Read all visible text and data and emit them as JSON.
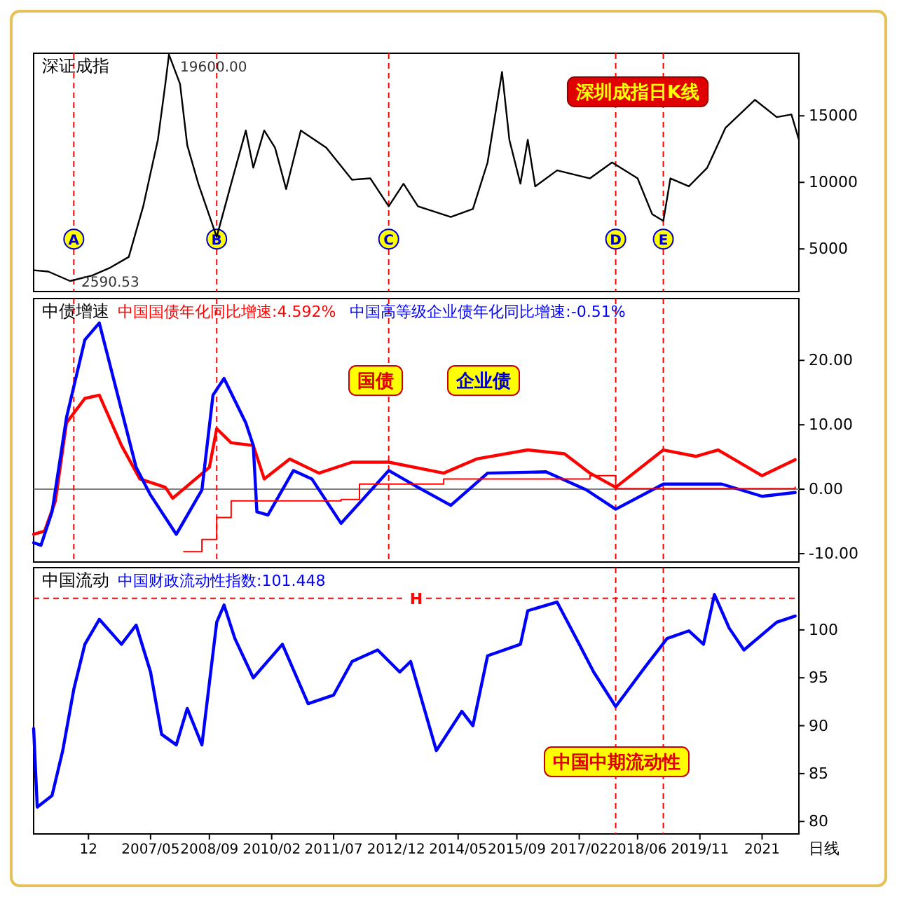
{
  "chart_data": [
    {
      "type": "line",
      "title": "深证成指",
      "xlim": [
        "2004-09",
        "2022-02"
      ],
      "ylim": [
        1800,
        19700
      ],
      "yticks": [
        5000,
        10000,
        15000
      ],
      "tick_labels": "y",
      "series": [
        {
          "color": "#000000",
          "x": [
            "2004-09",
            "2005-01",
            "2005-07",
            "2006-01",
            "2006-06",
            "2006-11",
            "2007-03",
            "2007-07",
            "2007-09",
            "2007-10",
            "2008-01",
            "2008-03",
            "2008-06",
            "2008-11",
            "2009-03",
            "2009-07",
            "2009-09",
            "2009-12",
            "2010-03",
            "2010-06",
            "2010-10",
            "2011-05",
            "2011-12",
            "2012-05",
            "2012-10",
            "2013-02",
            "2013-06",
            "2014-03",
            "2014-09",
            "2015-01",
            "2015-05",
            "2015-07",
            "2015-10",
            "2015-12",
            "2016-02",
            "2016-08",
            "2017-05",
            "2017-11",
            "2018-06",
            "2018-10",
            "2019-01",
            "2019-03",
            "2019-08",
            "2020-01",
            "2020-06",
            "2021-02",
            "2021-08",
            "2021-12",
            "2022-02"
          ],
          "values": [
            3400,
            3300,
            2590.53,
            3000,
            3600,
            4400,
            8200,
            13200,
            17400,
            19600,
            17400,
            12800,
            9900,
            5900,
            9900,
            13900,
            11100,
            13900,
            12600,
            9500,
            13900,
            12600,
            10200,
            10300,
            8200,
            9900,
            8200,
            7400,
            8000,
            11500,
            18300,
            13200,
            9900,
            13200,
            9700,
            10900,
            10300,
            11500,
            10300,
            7600,
            7100,
            10300,
            9700,
            11100,
            14100,
            16200,
            14900,
            15100,
            13200
          ]
        }
      ],
      "ref_lines": [
        {
          "axis": "x",
          "value": "2005-08",
          "label": "A",
          "color": "#ff0000",
          "line_style": "dashed"
        },
        {
          "axis": "x",
          "value": "2008-11",
          "label": "B",
          "color": "#ff0000",
          "line_style": "dashed"
        },
        {
          "axis": "x",
          "value": "2012-10",
          "label": "C",
          "color": "#ff0000",
          "line_style": "dashed"
        },
        {
          "axis": "x",
          "value": "2017-12",
          "label": "D",
          "color": "#ff0000",
          "line_style": "dashed"
        },
        {
          "axis": "x",
          "value": "2019-01",
          "label": "E",
          "color": "#ff0000",
          "line_style": "dashed"
        }
      ],
      "annotations": [
        {
          "text": "19600.00",
          "x": "2007-10",
          "y": 19600
        },
        {
          "text": "2590.53",
          "x": "2005-07",
          "y": 2590.53
        },
        "深圳成指日K线"
      ]
    },
    {
      "type": "line",
      "title": "中债增速",
      "xlim": [
        "2004-09",
        "2022-02"
      ],
      "ylim": [
        -11.3,
        29.6
      ],
      "yticks": [
        {
          "value": -10,
          "label": "-10.00"
        },
        {
          "value": 0,
          "label": "0.00"
        },
        {
          "value": 10,
          "label": "10.00"
        },
        {
          "value": 20,
          "label": "20.00"
        }
      ],
      "tick_labels": "y",
      "legend": "top left",
      "series": [
        {
          "name": "中国国债年化同比增速:4.592%",
          "color": "#ff0000",
          "x": [
            "2004-09",
            "2004-12",
            "2005-03",
            "2005-06",
            "2005-11",
            "2006-03",
            "2006-09",
            "2007-02",
            "2007-09",
            "2007-11",
            "2008-09",
            "2008-11",
            "2009-03",
            "2009-09",
            "2009-12",
            "2010-07",
            "2011-03",
            "2011-12",
            "2012-10",
            "2014-01",
            "2014-10",
            "2015-12",
            "2016-10",
            "2017-05",
            "2017-12",
            "2019-01",
            "2019-10",
            "2020-04",
            "2021-04",
            "2022-01"
          ],
          "values": [
            -7,
            -6.5,
            -1.8,
            10.3,
            14.1,
            14.6,
            6.8,
            1.6,
            0.3,
            -1.4,
            3.4,
            9.4,
            7.2,
            6.8,
            1.6,
            4.7,
            2.5,
            4.2,
            4.2,
            2.5,
            4.7,
            6.1,
            5.5,
            2.5,
            0.3,
            6.1,
            5.1,
            6.1,
            2.1,
            4.592
          ]
        },
        {
          "name": "中国高等级企业债年化同比增速:-0.51%",
          "color": "#0000ff",
          "x": [
            "2004-09",
            "2004-11",
            "2005-02",
            "2005-06",
            "2005-11",
            "2006-03",
            "2006-08",
            "2007-01",
            "2007-05",
            "2007-12",
            "2008-07",
            "2008-10",
            "2009-01",
            "2009-07",
            "2009-09",
            "2009-10",
            "2010-01",
            "2010-08",
            "2011-01",
            "2011-09",
            "2012-10",
            "2013-06",
            "2014-03",
            "2015-01",
            "2016-05",
            "2017-04",
            "2017-12",
            "2019-01",
            "2020-05",
            "2021-04",
            "2022-01"
          ],
          "values": [
            -8.3,
            -8.7,
            -3.5,
            11.1,
            23.2,
            25.8,
            14.6,
            3.4,
            -0.9,
            -7,
            -0.1,
            14.6,
            17.2,
            10.3,
            6.8,
            -3.5,
            -4,
            2.9,
            1.6,
            -5.3,
            2.9,
            0.3,
            -2.5,
            2.5,
            2.7,
            -0.1,
            -3.1,
            0.8,
            0.8,
            -1.1,
            -0.51
          ]
        },
        {
          "type": "step",
          "color": "#ff0000",
          "x": [
            "2008-02",
            "2008-07",
            "2008-11",
            "2009-03",
            "2011-09",
            "2012-02",
            "2014-01",
            "2017-05",
            "2017-12",
            "2022-01"
          ],
          "values": [
            -9.7,
            -7.8,
            -4.4,
            -1.8,
            -1.6,
            0.8,
            1.6,
            2.1,
            0.1,
            0.3
          ]
        }
      ],
      "ref_lines": [
        {
          "axis": "y",
          "value": 0,
          "color": "#808080",
          "line_style": "solid"
        },
        {
          "axis": "x",
          "value": "2005-08",
          "color": "#ff0000",
          "line_style": "dashed"
        },
        {
          "axis": "x",
          "value": "2008-11",
          "color": "#ff0000",
          "line_style": "dashed"
        },
        {
          "axis": "x",
          "value": "2012-10",
          "color": "#ff0000",
          "line_style": "dashed"
        },
        {
          "axis": "x",
          "value": "2017-12",
          "color": "#ff0000",
          "line_style": "dashed"
        },
        {
          "axis": "x",
          "value": "2019-01",
          "color": "#ff0000",
          "line_style": "dashed"
        }
      ],
      "annotations": [
        "国债",
        "企业债"
      ]
    },
    {
      "type": "line",
      "title": "中国流动",
      "xlim": [
        "2004-09",
        "2022-02"
      ],
      "ylim": [
        78.7,
        106.5
      ],
      "yticks": [
        80,
        85,
        90,
        95,
        100
      ],
      "legend": "top left",
      "xticks": [
        {
          "value": "2005-12",
          "label": "12"
        },
        {
          "value": "2007-05",
          "label": "2007/05"
        },
        {
          "value": "2008-09",
          "label": "2008/09"
        },
        {
          "value": "2010-02",
          "label": "2010/02"
        },
        {
          "value": "2011-07",
          "label": "2011/07"
        },
        {
          "value": "2012-12",
          "label": "2012/12"
        },
        {
          "value": "2014-05",
          "label": "2014/05"
        },
        {
          "value": "2015-09",
          "label": "2015/09"
        },
        {
          "value": "2017-02",
          "label": "2017/02"
        },
        {
          "value": "2018-06",
          "label": "2018/06"
        },
        {
          "value": "2019-11",
          "label": "2019/11"
        },
        {
          "value": "2021-04",
          "label": "2021"
        }
      ],
      "series": [
        {
          "name": "中国财政流动性指数:101.448",
          "color": "#0000ff",
          "x": [
            "2004-09",
            "2004-10",
            "2005-02",
            "2005-05",
            "2005-08",
            "2005-11",
            "2006-03",
            "2006-09",
            "2007-01",
            "2007-05",
            "2007-08",
            "2007-12",
            "2008-03",
            "2008-07",
            "2008-11",
            "2009-01",
            "2009-04",
            "2009-09",
            "2010-05",
            "2010-12",
            "2011-07",
            "2011-12",
            "2012-07",
            "2013-01",
            "2013-04",
            "2013-11",
            "2014-06",
            "2014-09",
            "2015-01",
            "2015-10",
            "2015-12",
            "2016-08",
            "2017-02",
            "2017-06",
            "2017-12",
            "2018-08",
            "2019-02",
            "2019-08",
            "2019-12",
            "2020-03",
            "2020-07",
            "2020-11",
            "2021-08",
            "2022-01"
          ],
          "values": [
            89.7,
            81.5,
            82.7,
            87.4,
            93.8,
            98.5,
            101.1,
            98.5,
            100.5,
            95.6,
            89.1,
            88,
            91.8,
            88,
            100.8,
            102.6,
            99.1,
            95,
            98.5,
            92.3,
            93.2,
            96.7,
            97.9,
            95.6,
            96.7,
            87.4,
            91.5,
            90,
            97.3,
            98.5,
            102,
            102.9,
            98.5,
            95.6,
            92,
            96.1,
            99.1,
            99.9,
            98.5,
            103.7,
            100.2,
            97.9,
            100.8,
            101.448
          ]
        }
      ],
      "ref_lines": [
        {
          "axis": "y",
          "value": 103.3,
          "label": "H",
          "color": "#ff0000",
          "line_style": "dashed"
        },
        {
          "axis": "x",
          "value": "2017-12",
          "color": "#ff0000",
          "line_style": "dashed"
        },
        {
          "axis": "x",
          "value": "2019-01",
          "color": "#ff0000",
          "line_style": "dashed"
        }
      ],
      "annotations": [
        "中国中期流动性",
        "日线"
      ]
    }
  ]
}
